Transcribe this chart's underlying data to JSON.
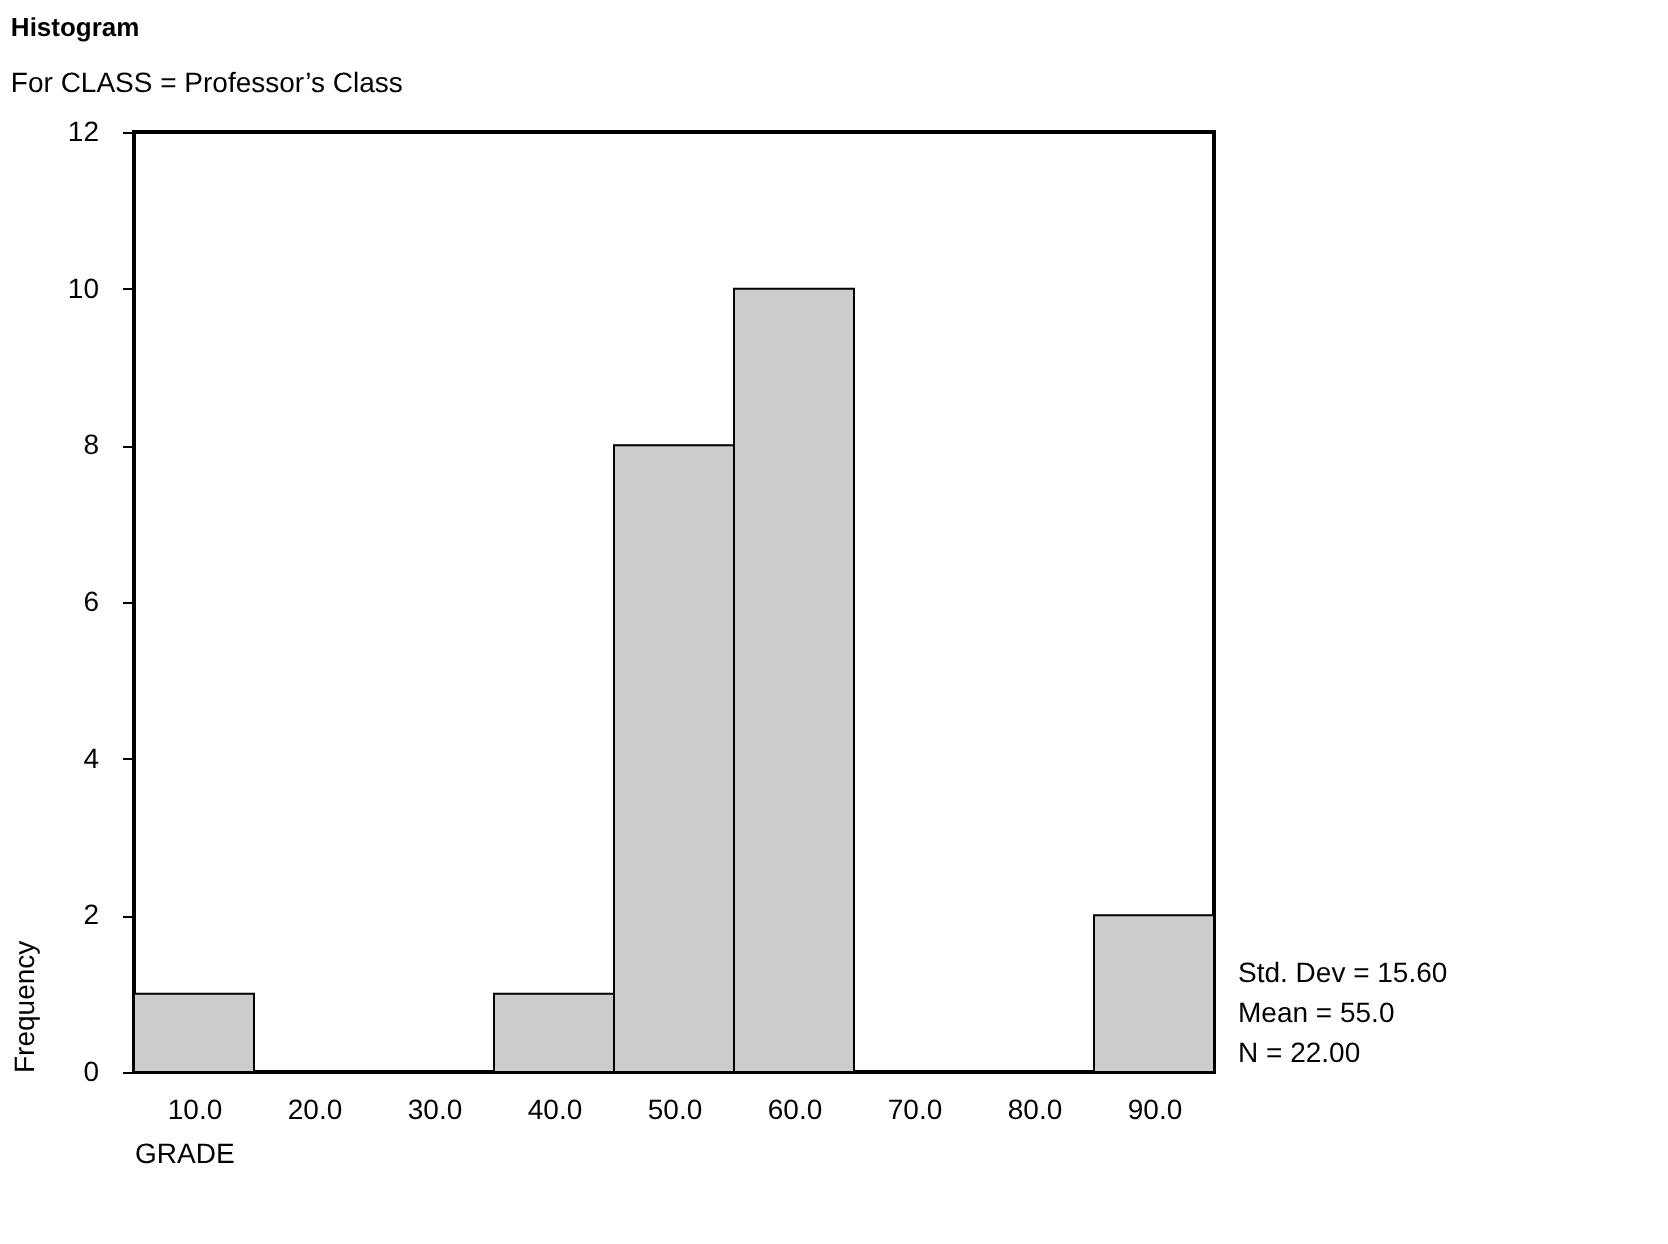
{
  "chart_data": {
    "type": "histogram",
    "title": "Histogram",
    "subtitle": "For CLASS = Professor’s Class",
    "xlabel": "GRADE",
    "ylabel": "Frequency",
    "bins": [
      5,
      15,
      25,
      35,
      45,
      55,
      65,
      75,
      85,
      95
    ],
    "values": [
      1,
      0,
      0,
      1,
      8,
      10,
      0,
      0,
      2
    ],
    "color": "#cccccc",
    "xlim": [
      5,
      95
    ],
    "xticks": [
      {
        "value": 10,
        "label": "10.0"
      },
      {
        "value": 20,
        "label": "20.0"
      },
      {
        "value": 30,
        "label": "30.0"
      },
      {
        "value": 40,
        "label": "40.0"
      },
      {
        "value": 50,
        "label": "50.0"
      },
      {
        "value": 60,
        "label": "60.0"
      },
      {
        "value": 70,
        "label": "70.0"
      },
      {
        "value": 80,
        "label": "80.0"
      },
      {
        "value": 90,
        "label": "90.0"
      }
    ],
    "ylim": [
      0,
      12
    ],
    "yticks": [
      0,
      2,
      4,
      6,
      8,
      10,
      12
    ],
    "grid": false,
    "annotations": [
      "Std. Dev = 15.60",
      "Mean = 55.0",
      "N = 22.00"
    ]
  }
}
